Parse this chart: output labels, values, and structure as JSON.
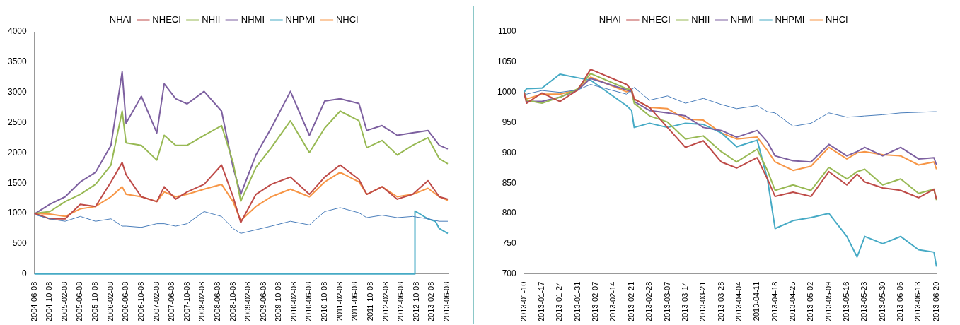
{
  "chart_data": [
    {
      "type": "line",
      "legend": "top",
      "x": [
        "2004-06-08",
        "2004-10-08",
        "2005-02-08",
        "2005-06-08",
        "2005-10-08",
        "2006-02-08",
        "2006-05-08",
        "2006-06-08",
        "2006-10-08",
        "2007-02-08",
        "2007-04-08",
        "2007-07-08",
        "2007-10-08",
        "2008-02-20",
        "2008-07-08",
        "2008-10-08",
        "2008-12-08",
        "2009-04-08",
        "2009-08-08",
        "2010-01-08",
        "2010-06-08",
        "2010-10-08",
        "2011-02-08",
        "2011-07-08",
        "2011-09-08",
        "2012-01-08",
        "2012-05-08",
        "2012-09-08",
        "2013-01-08",
        "2013-04-08",
        "2013-06-15"
      ],
      "series": [
        {
          "name": "NHAI",
          "color": "#4a7ebb",
          "values": [
            980,
            910,
            870,
            950,
            870,
            910,
            790,
            790,
            770,
            830,
            830,
            790,
            830,
            1030,
            950,
            750,
            670,
            730,
            790,
            870,
            810,
            1030,
            1095,
            1010,
            930,
            970,
            930,
            950,
            910,
            870,
            870
          ]
        },
        {
          "name": "NHECI",
          "color": "#be4b48",
          "values": [
            1000,
            910,
            910,
            1150,
            1115,
            1520,
            1840,
            1640,
            1275,
            1195,
            1440,
            1235,
            1355,
            1480,
            1800,
            1275,
            850,
            1315,
            1480,
            1600,
            1315,
            1600,
            1800,
            1560,
            1315,
            1440,
            1235,
            1315,
            1540,
            1275,
            1235
          ]
        },
        {
          "name": "NHII",
          "color": "#98b954",
          "values": [
            1000,
            1030,
            1195,
            1315,
            1480,
            1800,
            2690,
            2165,
            2125,
            1880,
            2290,
            2125,
            2125,
            2290,
            2450,
            1840,
            1200,
            1760,
            2085,
            2530,
            2005,
            2410,
            2690,
            2530,
            2085,
            2205,
            1965,
            2125,
            2250,
            1905,
            1820
          ]
        },
        {
          "name": "NHMI",
          "color": "#7d60a0",
          "values": [
            990,
            1150,
            1275,
            1520,
            1680,
            2125,
            3340,
            2490,
            2935,
            2330,
            3140,
            2895,
            2810,
            3015,
            2690,
            1760,
            1315,
            1965,
            2410,
            3015,
            2290,
            2855,
            2895,
            2815,
            2370,
            2450,
            2290,
            2330,
            2370,
            2125,
            2065
          ]
        },
        {
          "name": "NHPMI",
          "color": "#46aac5",
          "x": [
            "2004-06-08",
            "2012-09-25",
            "2012-09-26",
            "2013-01-08",
            "2013-03-08",
            "2013-04-08",
            "2013-06-15"
          ],
          "values": [
            0,
            0,
            1040,
            910,
            870,
            750,
            670
          ]
        },
        {
          "name": "NHCI",
          "color": "#f79646",
          "values": [
            1000,
            990,
            950,
            1075,
            1115,
            1275,
            1440,
            1315,
            1275,
            1195,
            1355,
            1275,
            1315,
            1400,
            1480,
            1195,
            880,
            1115,
            1275,
            1400,
            1275,
            1520,
            1680,
            1520,
            1315,
            1440,
            1275,
            1315,
            1415,
            1275,
            1215
          ]
        }
      ],
      "xlim": [
        "2004-06-08",
        "2013-06-20"
      ],
      "xticks": [
        "2004-06-08",
        "2004-10-08",
        "2005-02-08",
        "2005-06-08",
        "2005-10-08",
        "2006-02-08",
        "2006-06-08",
        "2006-10-08",
        "2007-02-08",
        "2007-06-08",
        "2007-10-08",
        "2008-02-08",
        "2008-06-08",
        "2008-10-08",
        "2009-02-08",
        "2009-06-08",
        "2009-10-08",
        "2010-02-08",
        "2010-06-08",
        "2010-10-08",
        "2011-02-08",
        "2011-06-08",
        "2011-10-08",
        "2012-02-08",
        "2012-06-08",
        "2012-10-08",
        "2013-02-08",
        "2013-06-08"
      ],
      "ylim": [
        0,
        4000
      ],
      "yticks": [
        0,
        500,
        1000,
        1500,
        2000,
        2500,
        3000,
        3500,
        4000
      ]
    },
    {
      "type": "line",
      "legend": "top",
      "x": [
        "2013-01-10",
        "2013-01-11",
        "2013-01-17",
        "2013-01-24",
        "2013-01-31",
        "2013-02-05",
        "2013-02-19",
        "2013-02-21",
        "2013-02-22",
        "2013-02-28",
        "2013-03-07",
        "2013-03-14",
        "2013-03-21",
        "2013-03-28",
        "2013-04-03",
        "2013-04-11",
        "2013-04-15",
        "2013-04-18",
        "2013-04-25",
        "2013-05-02",
        "2013-05-09",
        "2013-05-16",
        "2013-05-20",
        "2013-05-23",
        "2013-05-30",
        "2013-06-06",
        "2013-06-13",
        "2013-06-19",
        "2013-06-20"
      ],
      "series": [
        {
          "name": "NHAI",
          "color": "#4a7ebb",
          "values": [
            1000,
            997,
            1003,
            1000,
            1004,
            1013,
            997,
            1004,
            1008,
            987,
            994,
            982,
            990,
            980,
            973,
            978,
            968,
            966,
            944,
            949,
            966,
            959,
            960,
            961,
            963,
            966,
            967,
            968,
            968
          ]
        },
        {
          "name": "NHECI",
          "color": "#be4b48",
          "values": [
            1000,
            982,
            999,
            985,
            1004,
            1038,
            1013,
            1004,
            989,
            975,
            942,
            909,
            920,
            885,
            875,
            892,
            857,
            828,
            835,
            828,
            869,
            847,
            865,
            852,
            842,
            838,
            826,
            840,
            823
          ]
        },
        {
          "name": "NHII",
          "color": "#98b954",
          "values": [
            1000,
            987,
            982,
            992,
            1006,
            1031,
            1006,
            1004,
            982,
            961,
            951,
            923,
            928,
            902,
            885,
            906,
            871,
            838,
            847,
            838,
            876,
            857,
            869,
            873,
            847,
            857,
            833,
            840,
            822
          ]
        },
        {
          "name": "NHMI",
          "color": "#7d60a0",
          "values": [
            1000,
            985,
            985,
            992,
            1004,
            1023,
            1004,
            1001,
            985,
            970,
            966,
            961,
            942,
            937,
            926,
            937,
            918,
            895,
            887,
            885,
            914,
            895,
            902,
            909,
            895,
            909,
            890,
            892,
            880
          ]
        },
        {
          "name": "NHPMI",
          "color": "#46aac5",
          "values": [
            1000,
            1006,
            1007,
            1030,
            1024,
            1020,
            978,
            970,
            942,
            949,
            942,
            949,
            947,
            933,
            910,
            921,
            857,
            775,
            788,
            793,
            800,
            762,
            728,
            762,
            750,
            762,
            740,
            736,
            712
          ]
        },
        {
          "name": "NHCI",
          "color": "#f79646",
          "values": [
            1000,
            989,
            997,
            997,
            1004,
            1025,
            1001,
            1003,
            989,
            975,
            973,
            956,
            954,
            933,
            923,
            926,
            904,
            885,
            871,
            878,
            909,
            890,
            900,
            902,
            897,
            895,
            880,
            885,
            873
          ]
        }
      ],
      "xlim": [
        "2013-01-10",
        "2013-06-20"
      ],
      "xticks": [
        "2013-01-10",
        "2013-01-17",
        "2013-01-24",
        "2013-01-31",
        "2013-02-07",
        "2013-02-14",
        "2013-02-21",
        "2013-02-28",
        "2013-03-07",
        "2013-03-14",
        "2013-03-21",
        "2013-03-28",
        "2013-04-04",
        "2013-04-11",
        "2013-04-18",
        "2013-04-25",
        "2013-05-02",
        "2013-05-09",
        "2013-05-16",
        "2013-05-23",
        "2013-05-30",
        "2013-06-06",
        "2013-06-13",
        "2013-06-20"
      ],
      "ylim": [
        700,
        1100
      ],
      "yticks": [
        700,
        750,
        800,
        850,
        900,
        950,
        1000,
        1050,
        1100
      ]
    }
  ]
}
